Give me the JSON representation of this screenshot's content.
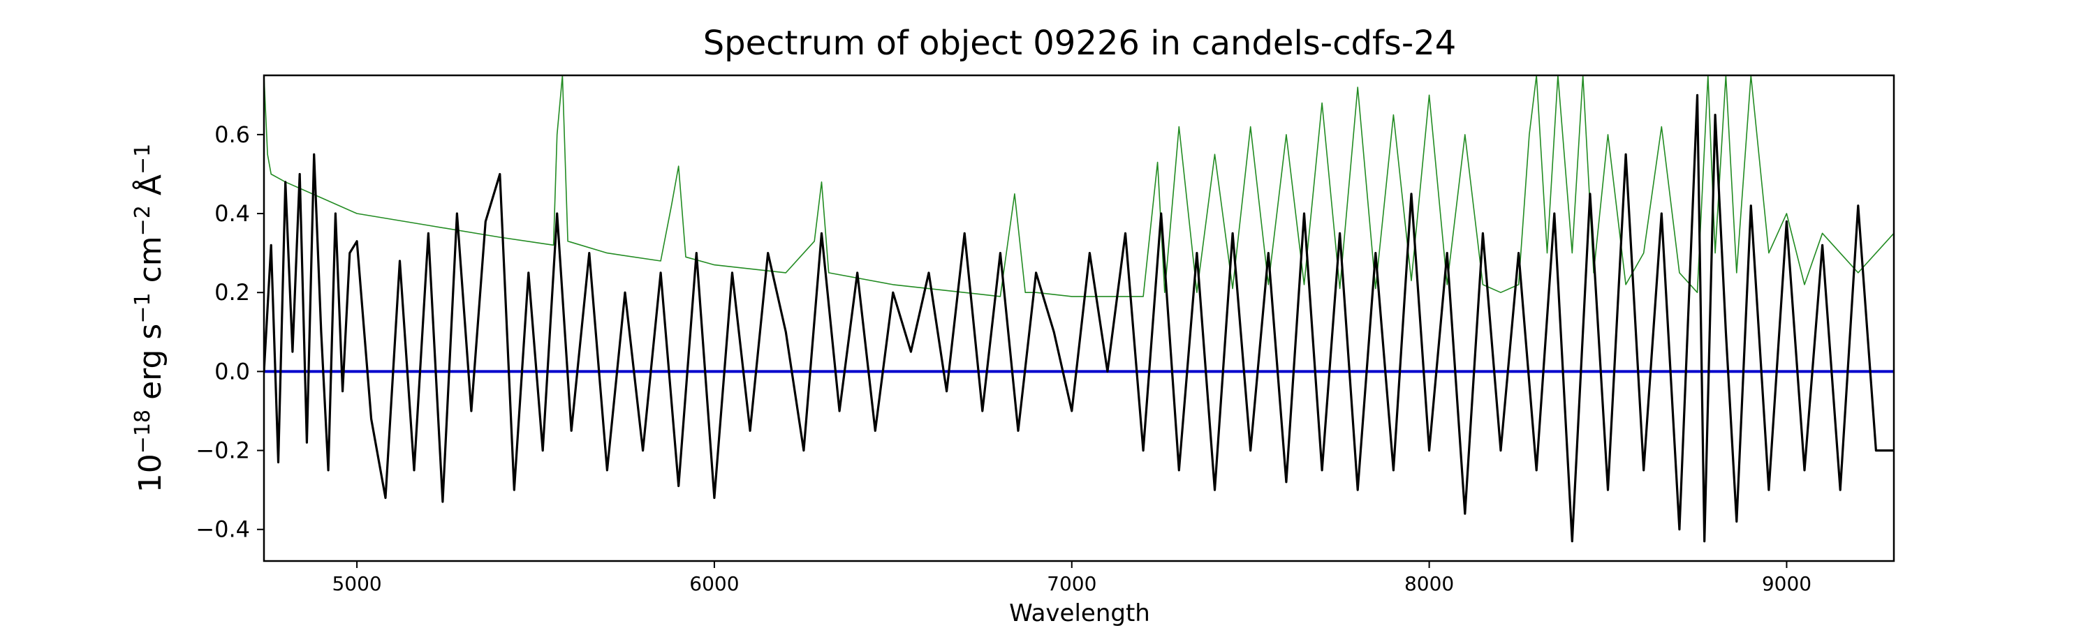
{
  "chart_data": {
    "type": "line",
    "title": "Spectrum of object 09226 in candels-cdfs-24",
    "xlabel": "Wavelength",
    "ylabel": {
      "base": "10",
      "exp1": "−18",
      "t1": " erg s",
      "exp2": "−1",
      "t2": " cm",
      "exp3": "−2",
      "t3": " Å",
      "exp4": "−1"
    },
    "xlim": [
      4740,
      9300
    ],
    "ylim": [
      -0.48,
      0.75
    ],
    "xticks": [
      {
        "value": 5000,
        "label": "5000"
      },
      {
        "value": 6000,
        "label": "6000"
      },
      {
        "value": 7000,
        "label": "7000"
      },
      {
        "value": 8000,
        "label": "8000"
      },
      {
        "value": 9000,
        "label": "9000"
      }
    ],
    "yticks": [
      {
        "value": -0.4,
        "label": "−0.4"
      },
      {
        "value": -0.2,
        "label": "−0.2"
      },
      {
        "value": 0.0,
        "label": "0.0"
      },
      {
        "value": 0.2,
        "label": "0.2"
      },
      {
        "value": 0.4,
        "label": "0.4"
      },
      {
        "value": 0.6,
        "label": "0.6"
      }
    ],
    "grid": false,
    "series": [
      {
        "role": "flux",
        "color": "#000000",
        "x": [
          4740,
          4760,
          4780,
          4800,
          4820,
          4840,
          4860,
          4880,
          4900,
          4920,
          4940,
          4960,
          4980,
          5000,
          5040,
          5080,
          5120,
          5160,
          5200,
          5240,
          5280,
          5320,
          5360,
          5400,
          5440,
          5480,
          5520,
          5560,
          5600,
          5650,
          5700,
          5750,
          5800,
          5850,
          5900,
          5950,
          6000,
          6050,
          6100,
          6150,
          6200,
          6250,
          6300,
          6350,
          6400,
          6450,
          6500,
          6550,
          6600,
          6650,
          6700,
          6750,
          6800,
          6850,
          6900,
          6950,
          7000,
          7050,
          7100,
          7150,
          7200,
          7250,
          7300,
          7350,
          7400,
          7450,
          7500,
          7550,
          7600,
          7650,
          7700,
          7750,
          7800,
          7850,
          7900,
          7950,
          8000,
          8050,
          8100,
          8150,
          8200,
          8250,
          8300,
          8350,
          8400,
          8450,
          8500,
          8550,
          8600,
          8650,
          8700,
          8750,
          8770,
          8800,
          8830,
          8860,
          8900,
          8950,
          9000,
          9050,
          9100,
          9150,
          9200,
          9250,
          9300
        ],
        "values": [
          0.0,
          0.32,
          -0.23,
          0.48,
          0.05,
          0.5,
          -0.18,
          0.55,
          0.1,
          -0.25,
          0.4,
          -0.05,
          0.3,
          0.33,
          -0.12,
          -0.32,
          0.28,
          -0.25,
          0.35,
          -0.33,
          0.4,
          -0.1,
          0.38,
          0.5,
          -0.3,
          0.25,
          -0.2,
          0.4,
          -0.15,
          0.3,
          -0.25,
          0.2,
          -0.2,
          0.25,
          -0.29,
          0.3,
          -0.32,
          0.25,
          -0.15,
          0.3,
          0.1,
          -0.2,
          0.35,
          -0.1,
          0.25,
          -0.15,
          0.2,
          0.05,
          0.25,
          -0.05,
          0.35,
          -0.1,
          0.3,
          -0.15,
          0.25,
          0.1,
          -0.1,
          0.3,
          0.0,
          0.35,
          -0.2,
          0.4,
          -0.25,
          0.3,
          -0.3,
          0.35,
          -0.2,
          0.3,
          -0.28,
          0.4,
          -0.25,
          0.35,
          -0.3,
          0.3,
          -0.25,
          0.45,
          -0.2,
          0.3,
          -0.36,
          0.35,
          -0.2,
          0.3,
          -0.25,
          0.4,
          -0.43,
          0.45,
          -0.3,
          0.55,
          -0.25,
          0.4,
          -0.4,
          0.7,
          -0.43,
          0.65,
          0.1,
          -0.38,
          0.42,
          -0.3,
          0.38,
          -0.25,
          0.32,
          -0.3,
          0.42,
          -0.2,
          -0.2
        ]
      },
      {
        "role": "error",
        "color": "#228b22",
        "x": [
          4740,
          4750,
          4760,
          4800,
          4900,
          5000,
          5200,
          5400,
          5550,
          5560,
          5575,
          5590,
          5700,
          5850,
          5880,
          5900,
          5920,
          6000,
          6200,
          6280,
          6300,
          6320,
          6500,
          6800,
          6840,
          6870,
          6900,
          7000,
          7100,
          7200,
          7240,
          7260,
          7300,
          7350,
          7400,
          7450,
          7500,
          7550,
          7600,
          7650,
          7700,
          7750,
          7800,
          7850,
          7900,
          7950,
          8000,
          8050,
          8100,
          8150,
          8200,
          8250,
          8280,
          8300,
          8330,
          8360,
          8400,
          8430,
          8460,
          8500,
          8550,
          8600,
          8650,
          8700,
          8750,
          8780,
          8800,
          8830,
          8860,
          8900,
          8950,
          9000,
          9050,
          9100,
          9200,
          9300
        ],
        "values": [
          0.75,
          0.55,
          0.5,
          0.48,
          0.44,
          0.4,
          0.37,
          0.34,
          0.32,
          0.6,
          0.75,
          0.33,
          0.3,
          0.28,
          0.42,
          0.52,
          0.29,
          0.27,
          0.25,
          0.33,
          0.48,
          0.25,
          0.22,
          0.19,
          0.45,
          0.2,
          0.2,
          0.19,
          0.19,
          0.19,
          0.53,
          0.2,
          0.62,
          0.2,
          0.55,
          0.21,
          0.62,
          0.22,
          0.6,
          0.22,
          0.68,
          0.21,
          0.72,
          0.21,
          0.65,
          0.23,
          0.7,
          0.22,
          0.6,
          0.22,
          0.2,
          0.22,
          0.6,
          0.75,
          0.3,
          0.75,
          0.3,
          0.75,
          0.25,
          0.6,
          0.22,
          0.3,
          0.62,
          0.25,
          0.2,
          0.75,
          0.3,
          0.75,
          0.25,
          0.75,
          0.3,
          0.4,
          0.22,
          0.35,
          0.25,
          0.35
        ]
      },
      {
        "role": "zero",
        "color": "#0000cc",
        "x": [
          4740,
          9300
        ],
        "values": [
          0.0,
          0.0
        ]
      }
    ]
  }
}
